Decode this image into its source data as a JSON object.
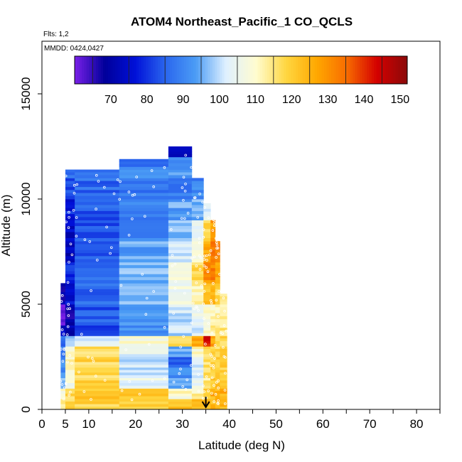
{
  "chart_data": {
    "type": "heatmap",
    "title": "ATOM4 Northeast_Pacific_1 CO_QCLS",
    "annotations": {
      "flights": "Flts: 1,2",
      "dates": "MMDD: 0424,0427"
    },
    "xlabel": "Latitude (deg N)",
    "ylabel": "Altitude (m)",
    "xlim": [
      0,
      85
    ],
    "ylim": [
      0,
      17500
    ],
    "x_ticks": [
      0,
      5,
      10,
      20,
      30,
      40,
      50,
      60,
      70,
      80
    ],
    "x_minor_ticks": [
      15,
      25,
      35,
      45,
      55,
      65,
      75,
      85
    ],
    "y_ticks": [
      0,
      5000,
      10000,
      15000
    ],
    "colorbar": {
      "range": [
        60,
        152
      ],
      "ticks": [
        70,
        80,
        90,
        100,
        110,
        120,
        130,
        140,
        150
      ],
      "colors": [
        "#7a20e8",
        "#00009a",
        "#0010d8",
        "#2a66ee",
        "#4b9cf5",
        "#dff0ff",
        "#fffcd0",
        "#ffd640",
        "#ffa800",
        "#f86c00",
        "#d40000",
        "#8a0a0a"
      ]
    },
    "arrow_marker": {
      "latitude": 35,
      "altitude_top": 600,
      "altitude_bottom": 0
    },
    "profile_columns": [
      {
        "lat_min": 4.0,
        "lat_max": 5.0,
        "alt_top": 6000
      },
      {
        "lat_min": 5.0,
        "lat_max": 7.0,
        "alt_top": 11400
      },
      {
        "lat_min": 7.0,
        "lat_max": 16.5,
        "alt_top": 11400
      },
      {
        "lat_min": 16.5,
        "lat_max": 27.0,
        "alt_top": 11900
      },
      {
        "lat_min": 27.0,
        "lat_max": 32.0,
        "alt_top": 12500
      },
      {
        "lat_min": 32.0,
        "lat_max": 34.5,
        "alt_top": 11000
      },
      {
        "lat_min": 34.5,
        "lat_max": 36.0,
        "alt_top": 9800
      },
      {
        "lat_min": 36.0,
        "lat_max": 37.0,
        "alt_top": 9200
      },
      {
        "lat_min": 37.0,
        "lat_max": 38.0,
        "alt_top": 8400
      },
      {
        "lat_min": 38.0,
        "lat_max": 39.5,
        "alt_top": 5500
      }
    ],
    "co_layers": [
      {
        "alt_bottom": 0,
        "alt_top": 500,
        "values": [
          115,
          118,
          118,
          120,
          122,
          122,
          124,
          124,
          124,
          124
        ]
      },
      {
        "alt_bottom": 500,
        "alt_top": 1000,
        "values": [
          110,
          118,
          122,
          120,
          110,
          112,
          120,
          125,
          125,
          125
        ]
      },
      {
        "alt_bottom": 1000,
        "alt_top": 1500,
        "values": [
          95,
          108,
          118,
          104,
          95,
          105,
          115,
          122,
          122,
          122
        ]
      },
      {
        "alt_bottom": 1500,
        "alt_top": 2000,
        "values": [
          92,
          110,
          118,
          100,
          90,
          104,
          116,
          118,
          118,
          118
        ]
      },
      {
        "alt_bottom": 2000,
        "alt_top": 2500,
        "values": [
          90,
          112,
          118,
          100,
          86,
          102,
          116,
          120,
          120,
          120
        ]
      },
      {
        "alt_bottom": 2500,
        "alt_top": 3000,
        "values": [
          90,
          110,
          116,
          104,
          94,
          110,
          118,
          118,
          118,
          118
        ]
      },
      {
        "alt_bottom": 3000,
        "alt_top": 3500,
        "values": [
          86,
          96,
          104,
          108,
          116,
          128,
          142,
          128,
          118,
          118
        ]
      },
      {
        "alt_bottom": 3500,
        "alt_top": 4000,
        "values": [
          75,
          72,
          80,
          92,
          100,
          102,
          110,
          114,
          114,
          114
        ]
      },
      {
        "alt_bottom": 4000,
        "alt_top": 5000,
        "values": [
          60,
          68,
          84,
          94,
          100,
          104,
          108,
          112,
          112,
          112
        ]
      },
      {
        "alt_bottom": 5000,
        "alt_top": 6000,
        "values": [
          70,
          76,
          86,
          96,
          106,
          112,
          122,
          124,
          118,
          112
        ]
      },
      {
        "alt_bottom": 6000,
        "alt_top": 7000,
        "values": [
          0,
          80,
          88,
          96,
          108,
          118,
          130,
          132,
          128,
          0
        ]
      },
      {
        "alt_bottom": 7000,
        "alt_top": 8000,
        "values": [
          0,
          72,
          84,
          94,
          100,
          110,
          128,
          134,
          132,
          0
        ]
      },
      {
        "alt_bottom": 8000,
        "alt_top": 9000,
        "values": [
          0,
          74,
          84,
          90,
          96,
          104,
          118,
          128,
          0,
          0
        ]
      },
      {
        "alt_bottom": 9000,
        "alt_top": 10000,
        "values": [
          0,
          78,
          84,
          90,
          94,
          96,
          104,
          0,
          0,
          0
        ]
      },
      {
        "alt_bottom": 10000,
        "alt_top": 11000,
        "values": [
          0,
          82,
          86,
          88,
          88,
          90,
          0,
          0,
          0,
          0
        ]
      },
      {
        "alt_bottom": 11000,
        "alt_top": 11400,
        "values": [
          0,
          86,
          88,
          90,
          92,
          0,
          0,
          0,
          0,
          0
        ]
      },
      {
        "alt_bottom": 11400,
        "alt_top": 12000,
        "values": [
          0,
          0,
          0,
          88,
          90,
          0,
          0,
          0,
          0,
          0
        ]
      },
      {
        "alt_bottom": 12000,
        "alt_top": 12500,
        "values": [
          0,
          0,
          0,
          0,
          70,
          0,
          0,
          0,
          0,
          0
        ]
      }
    ],
    "grid": false,
    "legend": "colorbar top-inside"
  }
}
